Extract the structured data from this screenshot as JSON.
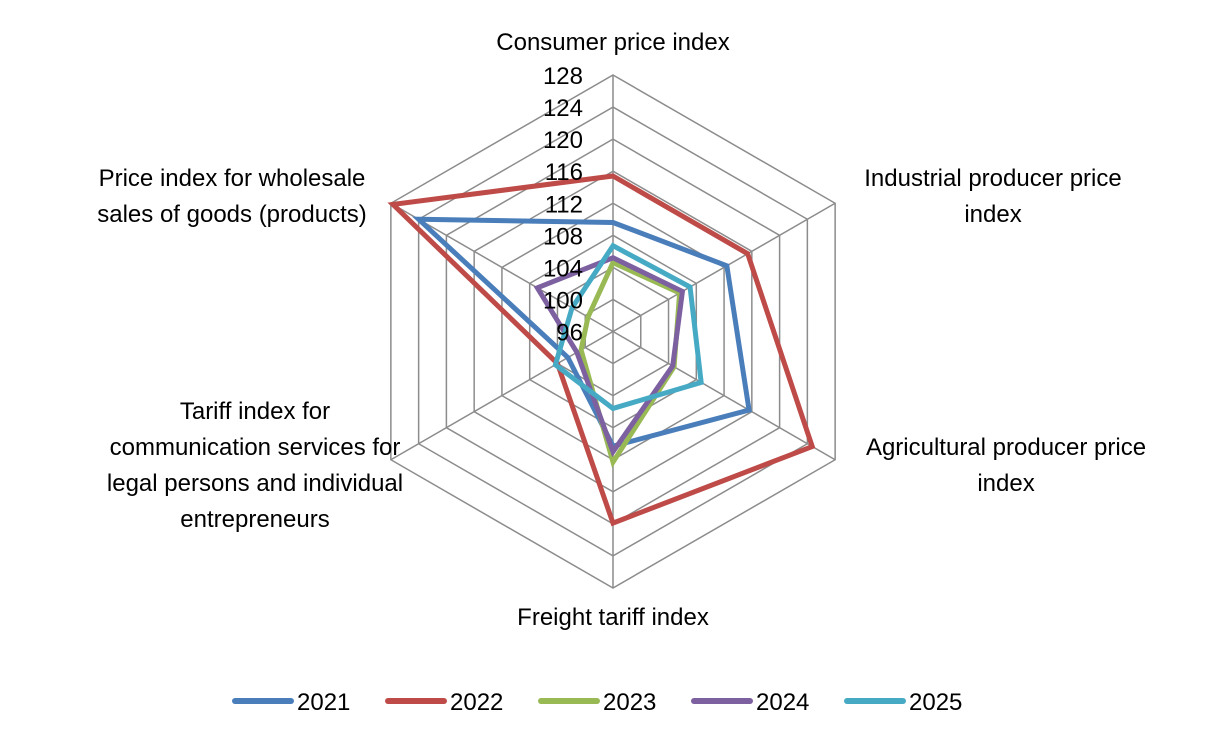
{
  "chart_data": {
    "type": "radar",
    "title": "",
    "categories": [
      "Consumer price index",
      "Industrial producer price index",
      "Agricultural producer price index",
      "Freight tariff index",
      "Tariff index for communication services for legal persons and individual entrepreneurs",
      "Price index for wholesale sales of goods (products)"
    ],
    "category_label_lines": [
      [
        "Consumer price index"
      ],
      [
        "Industrial producer price",
        "index"
      ],
      [
        "Agricultural producer price",
        "index"
      ],
      [
        "Freight tariff index"
      ],
      [
        "Tariff index for",
        "communication services for",
        "legal persons and individual",
        "entrepreneurs"
      ],
      [
        "Price index for wholesale",
        "sales of goods (products)"
      ]
    ],
    "radial_range": [
      96,
      128
    ],
    "radial_ticks": [
      96,
      100,
      104,
      108,
      112,
      116,
      120,
      124,
      128
    ],
    "grid": true,
    "legend_position": "bottom",
    "series": [
      {
        "name": "2021",
        "color": "#4a7ebb",
        "values": [
          109.6,
          112.4,
          115.6,
          110.3,
          102.5,
          124.0
        ]
      },
      {
        "name": "2022",
        "color": "#be4b48",
        "values": [
          115.4,
          115.4,
          124.7,
          119.9,
          104.0,
          127.7
        ]
      },
      {
        "name": "2023",
        "color": "#98b954",
        "values": [
          104.6,
          105.6,
          104.8,
          112.3,
          100.6,
          99.6
        ]
      },
      {
        "name": "2024",
        "color": "#7d60a0",
        "values": [
          105.2,
          106.0,
          104.6,
          111.0,
          101.2,
          106.9
        ]
      },
      {
        "name": "2025",
        "color": "#46aac5",
        "values": [
          106.7,
          107.1,
          108.7,
          105.6,
          104.3,
          101.9
        ]
      }
    ]
  }
}
